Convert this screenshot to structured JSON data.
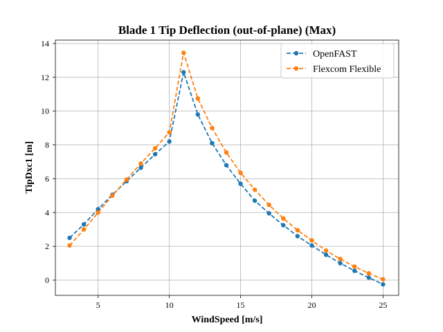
{
  "chart_data": {
    "type": "line",
    "title": "Blade 1 Tip Deflection (out-of-plane) (Max)",
    "xlabel": "WindSpeed [m/s]",
    "ylabel": "TipDxc1 [m]",
    "xlim": [
      2.0,
      26.1
    ],
    "ylim": [
      -0.9,
      14.2
    ],
    "xticks": [
      5,
      10,
      15,
      20,
      25
    ],
    "yticks": [
      0,
      2,
      4,
      6,
      8,
      10,
      12,
      14
    ],
    "grid": true,
    "legend_position": "top-right",
    "x": [
      3,
      4,
      5,
      6,
      7,
      8,
      9,
      10,
      11,
      12,
      13,
      14,
      15,
      16,
      17,
      18,
      19,
      20,
      21,
      22,
      23,
      24,
      25
    ],
    "series": [
      {
        "name": "OpenFAST",
        "color": "#1f77b4",
        "values": [
          2.5,
          3.3,
          4.2,
          5.05,
          5.85,
          6.65,
          7.45,
          8.2,
          12.3,
          9.8,
          8.1,
          6.8,
          5.7,
          4.7,
          3.95,
          3.25,
          2.6,
          2.05,
          1.5,
          1.0,
          0.55,
          0.15,
          -0.25
        ]
      },
      {
        "name": "Flexcom Flexible",
        "color": "#ff7f0e",
        "values": [
          2.05,
          3.0,
          4.0,
          5.0,
          5.95,
          6.9,
          7.8,
          8.75,
          13.45,
          10.75,
          9.0,
          7.55,
          6.35,
          5.35,
          4.45,
          3.65,
          2.95,
          2.35,
          1.75,
          1.25,
          0.8,
          0.4,
          0.05
        ]
      }
    ]
  }
}
